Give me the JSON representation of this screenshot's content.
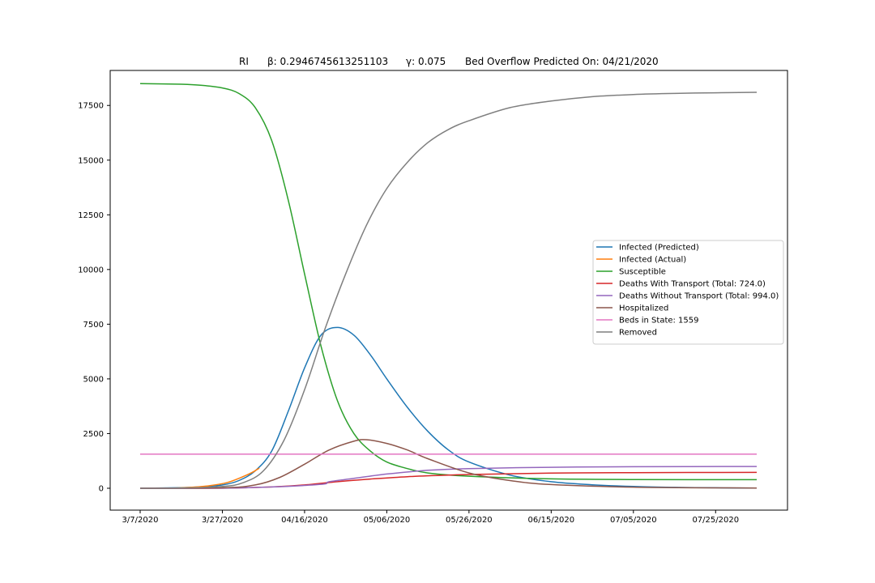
{
  "chart_data": {
    "type": "line",
    "title": {
      "state": "RI",
      "beta": "β: 0.2946745613251103",
      "gamma": "γ: 0.075",
      "overflow": "Bed Overflow Predicted On: 04/21/2020"
    },
    "xlabel": "",
    "ylabel": "",
    "x_axis": {
      "start": "2020-03-07",
      "end": "2020-08-04",
      "ticks": [
        {
          "date": "2020-03-07",
          "label": "3/7/2020"
        },
        {
          "date": "2020-03-27",
          "label": "3/27/2020"
        },
        {
          "date": "2020-04-16",
          "label": "04/16/2020"
        },
        {
          "date": "2020-05-06",
          "label": "05/06/2020"
        },
        {
          "date": "2020-05-26",
          "label": "05/26/2020"
        },
        {
          "date": "2020-06-15",
          "label": "06/15/2020"
        },
        {
          "date": "2020-07-05",
          "label": "07/05/2020"
        },
        {
          "date": "2020-07-25",
          "label": "07/25/2020"
        }
      ]
    },
    "y_axis": {
      "ylim": [
        -1000,
        19100
      ],
      "ticks": [
        0,
        2500,
        5000,
        7500,
        10000,
        12500,
        15000,
        17500
      ]
    },
    "grid": false,
    "legend_position": "right",
    "series": [
      {
        "name": "Infected (Predicted)",
        "color": "#1f77b4",
        "points": [
          [
            "2020-03-07",
            0
          ],
          [
            "2020-03-17",
            25
          ],
          [
            "2020-03-22",
            70
          ],
          [
            "2020-03-27",
            150
          ],
          [
            "2020-03-31",
            350
          ],
          [
            "2020-04-04",
            800
          ],
          [
            "2020-04-08",
            1700
          ],
          [
            "2020-04-12",
            3500
          ],
          [
            "2020-04-16",
            5500
          ],
          [
            "2020-04-20",
            7000
          ],
          [
            "2020-04-24",
            7350
          ],
          [
            "2020-04-28",
            7000
          ],
          [
            "2020-05-02",
            6100
          ],
          [
            "2020-05-06",
            5000
          ],
          [
            "2020-05-11",
            3700
          ],
          [
            "2020-05-16",
            2600
          ],
          [
            "2020-05-21",
            1750
          ],
          [
            "2020-05-26",
            1200
          ],
          [
            "2020-06-05",
            600
          ],
          [
            "2020-06-15",
            300
          ],
          [
            "2020-06-25",
            160
          ],
          [
            "2020-07-05",
            80
          ],
          [
            "2020-07-15",
            40
          ],
          [
            "2020-07-25",
            20
          ],
          [
            "2020-08-04",
            10
          ]
        ]
      },
      {
        "name": "Infected (Actual)",
        "color": "#ff7f0e",
        "points": [
          [
            "2020-03-07",
            0
          ],
          [
            "2020-03-15",
            10
          ],
          [
            "2020-03-20",
            50
          ],
          [
            "2020-03-24",
            120
          ],
          [
            "2020-03-28",
            250
          ],
          [
            "2020-03-31",
            450
          ],
          [
            "2020-04-03",
            700
          ],
          [
            "2020-04-05",
            920
          ]
        ]
      },
      {
        "name": "Susceptible",
        "color": "#2ca02c",
        "points": [
          [
            "2020-03-07",
            18500
          ],
          [
            "2020-03-17",
            18470
          ],
          [
            "2020-03-22",
            18420
          ],
          [
            "2020-03-27",
            18300
          ],
          [
            "2020-03-31",
            18050
          ],
          [
            "2020-04-04",
            17400
          ],
          [
            "2020-04-08",
            15900
          ],
          [
            "2020-04-12",
            13200
          ],
          [
            "2020-04-16",
            9800
          ],
          [
            "2020-04-20",
            6500
          ],
          [
            "2020-04-24",
            4000
          ],
          [
            "2020-04-28",
            2500
          ],
          [
            "2020-05-02",
            1700
          ],
          [
            "2020-05-06",
            1200
          ],
          [
            "2020-05-11",
            900
          ],
          [
            "2020-05-16",
            700
          ],
          [
            "2020-05-26",
            550
          ],
          [
            "2020-06-15",
            430
          ],
          [
            "2020-07-05",
            400
          ],
          [
            "2020-08-04",
            390
          ]
        ]
      },
      {
        "name": "Deaths With Transport (Total: 724.0)",
        "color": "#d62728",
        "points": [
          [
            "2020-03-07",
            0
          ],
          [
            "2020-03-27",
            5
          ],
          [
            "2020-04-08",
            60
          ],
          [
            "2020-04-16",
            150
          ],
          [
            "2020-04-24",
            300
          ],
          [
            "2020-05-02",
            420
          ],
          [
            "2020-05-11",
            530
          ],
          [
            "2020-05-21",
            600
          ],
          [
            "2020-05-26",
            630
          ],
          [
            "2020-06-15",
            690
          ],
          [
            "2020-07-05",
            715
          ],
          [
            "2020-08-04",
            724
          ]
        ]
      },
      {
        "name": "Deaths Without Transport (Total: 994.0)",
        "color": "#9467bd",
        "points": [
          [
            "2020-03-07",
            0
          ],
          [
            "2020-03-27",
            5
          ],
          [
            "2020-04-08",
            60
          ],
          [
            "2020-04-16",
            130
          ],
          [
            "2020-04-21",
            200
          ],
          [
            "2020-04-22",
            300
          ],
          [
            "2020-04-28",
            450
          ],
          [
            "2020-05-06",
            650
          ],
          [
            "2020-05-16",
            820
          ],
          [
            "2020-05-26",
            900
          ],
          [
            "2020-06-15",
            960
          ],
          [
            "2020-07-05",
            985
          ],
          [
            "2020-08-04",
            994
          ]
        ]
      },
      {
        "name": "Hospitalized",
        "color": "#8c564b",
        "points": [
          [
            "2020-03-07",
            0
          ],
          [
            "2020-03-27",
            20
          ],
          [
            "2020-04-04",
            150
          ],
          [
            "2020-04-10",
            500
          ],
          [
            "2020-04-16",
            1100
          ],
          [
            "2020-04-22",
            1750
          ],
          [
            "2020-04-28",
            2150
          ],
          [
            "2020-05-01",
            2220
          ],
          [
            "2020-05-06",
            2050
          ],
          [
            "2020-05-11",
            1750
          ],
          [
            "2020-05-16",
            1350
          ],
          [
            "2020-05-26",
            700
          ],
          [
            "2020-06-05",
            350
          ],
          [
            "2020-06-15",
            170
          ],
          [
            "2020-07-05",
            50
          ],
          [
            "2020-08-04",
            10
          ]
        ]
      },
      {
        "name": "Beds in State: 1559",
        "color": "#e377c2",
        "points": [
          [
            "2020-03-07",
            1559
          ],
          [
            "2020-08-04",
            1559
          ]
        ]
      },
      {
        "name": "Removed",
        "color": "#7f7f7f",
        "points": [
          [
            "2020-03-07",
            0
          ],
          [
            "2020-03-17",
            10
          ],
          [
            "2020-03-27",
            80
          ],
          [
            "2020-04-01",
            250
          ],
          [
            "2020-04-06",
            800
          ],
          [
            "2020-04-11",
            2200
          ],
          [
            "2020-04-16",
            4500
          ],
          [
            "2020-04-21",
            7300
          ],
          [
            "2020-04-26",
            9800
          ],
          [
            "2020-05-01",
            12000
          ],
          [
            "2020-05-06",
            13700
          ],
          [
            "2020-05-11",
            14900
          ],
          [
            "2020-05-16",
            15800
          ],
          [
            "2020-05-21",
            16400
          ],
          [
            "2020-05-26",
            16800
          ],
          [
            "2020-06-05",
            17400
          ],
          [
            "2020-06-15",
            17700
          ],
          [
            "2020-06-25",
            17900
          ],
          [
            "2020-07-05",
            18000
          ],
          [
            "2020-07-15",
            18050
          ],
          [
            "2020-07-25",
            18080
          ],
          [
            "2020-08-04",
            18100
          ]
        ]
      }
    ]
  }
}
